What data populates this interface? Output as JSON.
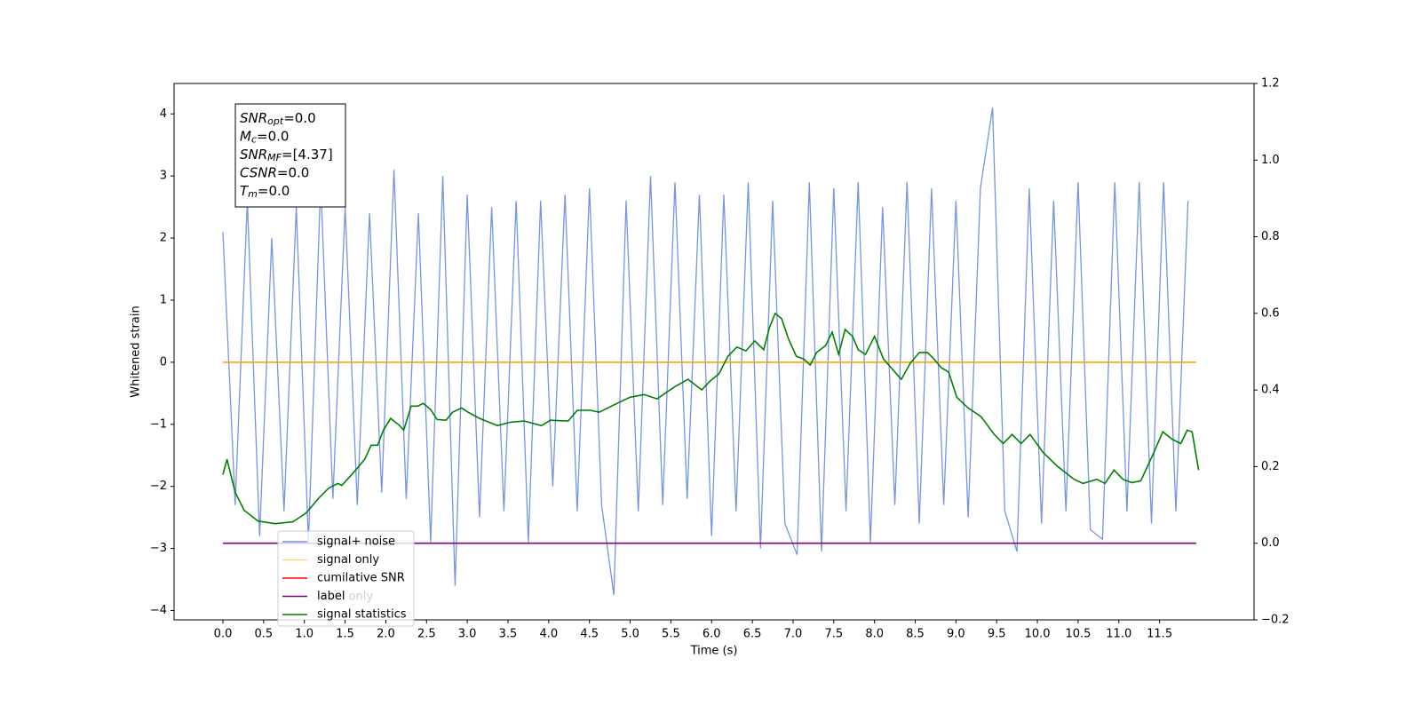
{
  "chart_data": {
    "type": "line",
    "xlabel": "Time (s)",
    "ylabel": "Whitened strain",
    "xlim": [
      -0.6,
      12.66
    ],
    "ylim": [
      -4.15,
      4.49
    ],
    "y2lim": [
      -0.2,
      1.2
    ],
    "xticks": [
      {
        "value": 0,
        "label": "0.0"
      },
      0.5,
      {
        "value": 1,
        "label": "1.0"
      },
      1.5,
      {
        "value": 2,
        "label": "2.0"
      },
      2.5,
      {
        "value": 3,
        "label": "3.0"
      },
      3.5,
      {
        "value": 4,
        "label": "4.0"
      },
      4.5,
      {
        "value": 5,
        "label": "5.0"
      },
      5.5,
      {
        "value": 6,
        "label": "6.0"
      },
      6.5,
      {
        "value": 7,
        "label": "7.0"
      },
      7.5,
      {
        "value": 8,
        "label": "8.0"
      },
      8.5,
      {
        "value": 9,
        "label": "9.0"
      },
      9.5,
      {
        "value": 10,
        "label": "10.0"
      },
      10.5,
      {
        "value": 11,
        "label": "11.0"
      },
      11.5
    ],
    "yticks": [
      {
        "value": -4,
        "label": "−4"
      },
      {
        "value": -3,
        "label": "−3"
      },
      {
        "value": -2,
        "label": "−2"
      },
      {
        "value": -1,
        "label": "−1"
      },
      0,
      1,
      2,
      3,
      4
    ],
    "y2ticks": [
      {
        "value": -0.2,
        "label": "−0.2"
      },
      {
        "value": 0,
        "label": "0.0"
      },
      {
        "value": 0.2,
        "label": "0.2"
      },
      {
        "value": 0.4,
        "label": "0.4"
      },
      {
        "value": 0.6,
        "label": "0.6"
      },
      {
        "value": 0.8,
        "label": "0.8"
      },
      {
        "value": 1,
        "label": "1.0"
      },
      {
        "value": 1.2,
        "label": "1.2"
      }
    ],
    "series": [
      {
        "name": "signal+ noise",
        "color": "#7594e6",
        "x": [
          0,
          0.15,
          0.3,
          0.45,
          0.6,
          0.75,
          0.9,
          1.05,
          1.2,
          1.35,
          1.5,
          1.65,
          1.8,
          1.95,
          2.1,
          2.25,
          2.4,
          2.55,
          2.7,
          2.85,
          3.0,
          3.15,
          3.3,
          3.45,
          3.6,
          3.75,
          3.9,
          4.05,
          4.2,
          4.35,
          4.5,
          4.65,
          4.8,
          4.95,
          5.1,
          5.25,
          5.4,
          5.55,
          5.7,
          5.85,
          6.0,
          6.15,
          6.3,
          6.45,
          6.6,
          6.75,
          6.9,
          7.05,
          7.2,
          7.35,
          7.5,
          7.65,
          7.8,
          7.95,
          8.1,
          8.25,
          8.4,
          8.55,
          8.7,
          8.85,
          9.0,
          9.15,
          9.3,
          9.45,
          9.6,
          9.75,
          9.9,
          10.05,
          10.2,
          10.35,
          10.5,
          10.65,
          10.8,
          10.95,
          11.1,
          11.25,
          11.4,
          11.55,
          11.7,
          11.85
        ],
        "values": [
          2.1,
          -2.3,
          2.6,
          -2.8,
          2.0,
          -2.4,
          2.5,
          -2.9,
          2.9,
          -2.2,
          2.5,
          -2.3,
          2.4,
          -2.1,
          3.1,
          -2.2,
          2.4,
          -2.9,
          3.0,
          -3.6,
          2.7,
          -2.5,
          2.5,
          -2.4,
          2.6,
          -2.9,
          2.6,
          -2.0,
          2.7,
          -2.4,
          2.8,
          -2.3,
          -3.75,
          2.6,
          -2.4,
          3.0,
          -2.3,
          2.9,
          -2.2,
          2.7,
          -2.8,
          2.7,
          -2.4,
          2.9,
          -3.0,
          2.6,
          -2.6,
          -3.1,
          2.9,
          -3.05,
          2.8,
          -2.4,
          2.9,
          -2.9,
          2.5,
          -2.3,
          2.9,
          -2.6,
          2.8,
          -2.3,
          2.6,
          -2.5,
          2.8,
          4.1,
          -2.4,
          -3.05,
          2.8,
          -2.6,
          2.6,
          -2.4,
          2.9,
          -2.7,
          -2.85,
          2.9,
          -2.4,
          2.9,
          -2.6,
          2.9,
          -2.4,
          2.6
        ]
      },
      {
        "name": "signal only",
        "color": "#ffa500",
        "x": [
          0,
          11.95
        ],
        "values": [
          0,
          0
        ]
      },
      {
        "name": "cumilative SNR",
        "color": "#ff0000",
        "x": [],
        "values": []
      },
      {
        "name": "label",
        "color": "#800080",
        "axis": "y2",
        "x": [
          0,
          11.95
        ],
        "values": [
          0,
          0
        ]
      },
      {
        "name": "signal statistics",
        "color": "#008000",
        "axis": "y2",
        "x": [
          0,
          0.05,
          0.15,
          0.26,
          0.43,
          0.64,
          0.86,
          1.02,
          1.19,
          1.3,
          1.41,
          1.46,
          1.63,
          1.74,
          1.82,
          1.9,
          1.97,
          2.06,
          2.17,
          2.22,
          2.31,
          2.39,
          2.46,
          2.55,
          2.63,
          2.74,
          2.82,
          2.93,
          3.01,
          3.15,
          3.37,
          3.53,
          3.7,
          3.91,
          4.02,
          4.24,
          4.35,
          4.51,
          4.62,
          4.84,
          5.0,
          5.17,
          5.33,
          5.55,
          5.71,
          5.88,
          5.98,
          6.09,
          6.2,
          6.31,
          6.42,
          6.53,
          6.64,
          6.71,
          6.78,
          6.86,
          6.94,
          7.04,
          7.13,
          7.21,
          7.29,
          7.4,
          7.48,
          7.56,
          7.64,
          7.73,
          7.8,
          7.89,
          8.0,
          8.11,
          8.27,
          8.33,
          8.44,
          8.55,
          8.65,
          8.73,
          8.82,
          8.91,
          9.01,
          9.15,
          9.31,
          9.47,
          9.58,
          9.69,
          9.8,
          9.91,
          10.07,
          10.24,
          10.45,
          10.56,
          10.73,
          10.83,
          10.94,
          11.05,
          11.16,
          11.27,
          11.43,
          11.54,
          11.65,
          11.76,
          11.84,
          11.9,
          11.98
        ],
        "values": [
          0.179,
          0.219,
          0.133,
          0.086,
          0.058,
          0.051,
          0.056,
          0.079,
          0.121,
          0.144,
          0.156,
          0.151,
          0.191,
          0.219,
          0.256,
          0.256,
          0.295,
          0.326,
          0.307,
          0.295,
          0.358,
          0.358,
          0.365,
          0.349,
          0.323,
          0.321,
          0.342,
          0.353,
          0.342,
          0.326,
          0.307,
          0.316,
          0.319,
          0.307,
          0.321,
          0.319,
          0.347,
          0.347,
          0.342,
          0.365,
          0.381,
          0.388,
          0.377,
          0.409,
          0.428,
          0.4,
          0.423,
          0.442,
          0.488,
          0.512,
          0.502,
          0.528,
          0.505,
          0.563,
          0.6,
          0.586,
          0.535,
          0.488,
          0.481,
          0.465,
          0.498,
          0.516,
          0.551,
          0.493,
          0.558,
          0.54,
          0.505,
          0.493,
          0.54,
          0.481,
          0.442,
          0.428,
          0.47,
          0.498,
          0.498,
          0.481,
          0.458,
          0.447,
          0.381,
          0.353,
          0.33,
          0.284,
          0.26,
          0.284,
          0.26,
          0.284,
          0.237,
          0.202,
          0.167,
          0.156,
          0.167,
          0.156,
          0.191,
          0.167,
          0.158,
          0.163,
          0.237,
          0.291,
          0.272,
          0.26,
          0.295,
          0.291,
          0.191
        ]
      }
    ],
    "hidden_legend_text": "label only",
    "legend": "lower left",
    "info_box": [
      {
        "symbol": "SNR",
        "subscript": "opt",
        "value": "=0.0"
      },
      {
        "symbol": "M",
        "subscript": "c",
        "value": "=0.0"
      },
      {
        "symbol": "SNR",
        "subscript": "MF",
        "value": "=[4.37]"
      },
      {
        "symbol": "CSNR",
        "value": "=0.0"
      },
      {
        "symbol": "T",
        "subscript": "m",
        "value": "=0.0"
      }
    ]
  }
}
